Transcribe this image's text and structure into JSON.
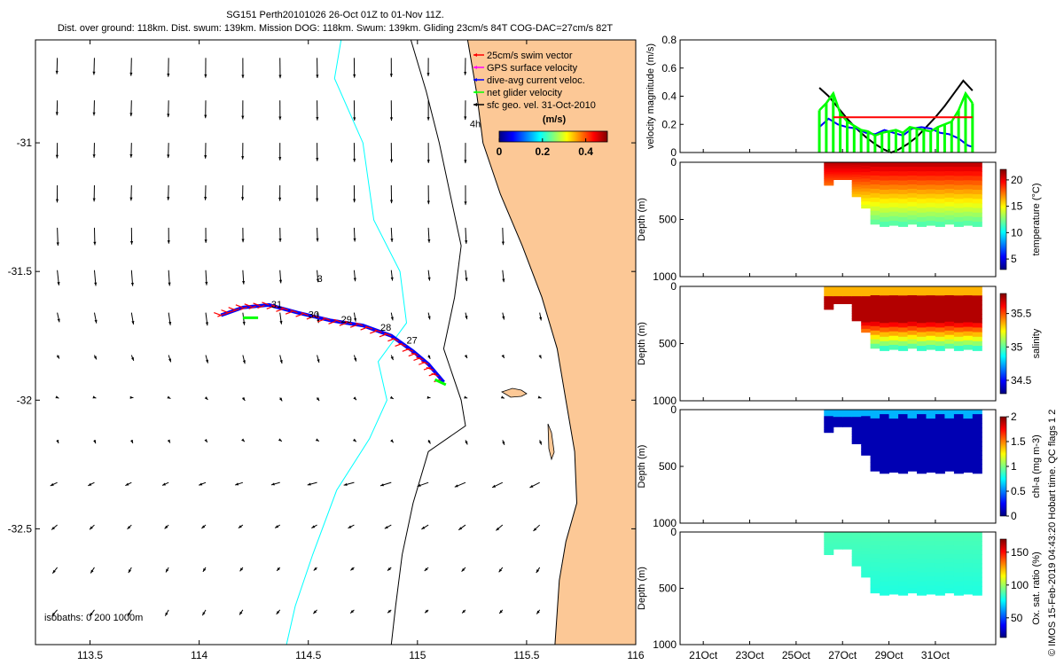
{
  "title_line1": "SG151 Perth20101026 26-Oct 01Z to 01-Nov 11Z.",
  "title_line2": "Dist. over ground: 118km. Dist. swum: 139km. Mission DOG: 118km. Swum: 139km. Gliding 23cm/s 84T COG-DAC=27cm/s 82T",
  "colors": {
    "land": "#fcc896",
    "coast": "#000000",
    "isobath_200": "#000000",
    "isobath_1000": "#00ffff",
    "swim_vector": "#ff0000",
    "gps_velocity": "#ff00ff",
    "dive_avg_current": "#0000ff",
    "net_glider_velocity": "#00ff00",
    "sfc_geo_vel": "#000000"
  },
  "map": {
    "xaxis": {
      "lim": [
        113.25,
        116.0
      ],
      "ticks": [
        113.5,
        114,
        114.5,
        115,
        115.5,
        116
      ],
      "tick_labels": [
        "113.5",
        "114",
        "114.5",
        "115",
        "115.5",
        "116"
      ]
    },
    "yaxis": {
      "lim": [
        -32.95,
        -30.6
      ],
      "ticks": [
        -31,
        -31.5,
        -32,
        -32.5
      ],
      "tick_labels": [
        "-31",
        "-31.5",
        "-32",
        "-32.5"
      ]
    },
    "legend": {
      "placement": "top-right",
      "entries": [
        {
          "label": "25cm/s swim vector",
          "color": "#ff0000"
        },
        {
          "label": "GPS surface velocity",
          "color": "#ff00ff"
        },
        {
          "label": "dive-avg current veloc.",
          "color": "#0000ff"
        },
        {
          "label": "net glider velocity",
          "color": "#00ff00"
        },
        {
          "label": "sfc geo. vel. 31-Oct-2010",
          "color": "#000000"
        }
      ]
    },
    "colorbar": {
      "label": "(m/s)",
      "ticks": [
        0,
        0.2,
        0.4
      ],
      "tick_labels": [
        "0",
        "0.2",
        "0.4"
      ],
      "lim": [
        0,
        0.5
      ],
      "colormap": "jet"
    },
    "isobath_note": "isobaths: 0   200  1000m",
    "day_labels": [
      {
        "text": "31",
        "lon": 114.33,
        "lat": -31.64
      },
      {
        "text": "30",
        "lon": 114.5,
        "lat": -31.68
      },
      {
        "text": "29",
        "lon": 114.65,
        "lat": -31.7
      },
      {
        "text": "28",
        "lon": 114.83,
        "lat": -31.73
      },
      {
        "text": "27",
        "lon": 114.95,
        "lat": -31.78
      },
      {
        "text": "3",
        "lon": 114.54,
        "lat": -31.54
      },
      {
        "text": "4h",
        "lon": 115.24,
        "lat": -30.94
      }
    ],
    "track": [
      {
        "lon": 114.1,
        "lat": -31.67
      },
      {
        "lon": 114.2,
        "lat": -31.64
      },
      {
        "lon": 114.32,
        "lat": -31.63
      },
      {
        "lon": 114.45,
        "lat": -31.66
      },
      {
        "lon": 114.6,
        "lat": -31.69
      },
      {
        "lon": 114.75,
        "lat": -31.71
      },
      {
        "lon": 114.88,
        "lat": -31.75
      },
      {
        "lon": 114.98,
        "lat": -31.81
      },
      {
        "lon": 115.05,
        "lat": -31.86
      },
      {
        "lon": 115.12,
        "lat": -31.93
      }
    ],
    "coastline": [
      {
        "lon": 115.23,
        "lat": -30.6
      },
      {
        "lon": 115.27,
        "lat": -30.8
      },
      {
        "lon": 115.3,
        "lat": -31.0
      },
      {
        "lon": 115.38,
        "lat": -31.2
      },
      {
        "lon": 115.48,
        "lat": -31.4
      },
      {
        "lon": 115.57,
        "lat": -31.6
      },
      {
        "lon": 115.64,
        "lat": -31.8
      },
      {
        "lon": 115.68,
        "lat": -32.0
      },
      {
        "lon": 115.72,
        "lat": -32.2
      },
      {
        "lon": 115.73,
        "lat": -32.4
      },
      {
        "lon": 115.68,
        "lat": -32.55
      },
      {
        "lon": 115.65,
        "lat": -32.7
      },
      {
        "lon": 115.63,
        "lat": -32.95
      }
    ],
    "isobath_200m": [
      {
        "lon": 114.97,
        "lat": -30.6
      },
      {
        "lon": 115.04,
        "lat": -30.8
      },
      {
        "lon": 115.1,
        "lat": -31.0
      },
      {
        "lon": 115.15,
        "lat": -31.2
      },
      {
        "lon": 115.2,
        "lat": -31.4
      },
      {
        "lon": 115.17,
        "lat": -31.6
      },
      {
        "lon": 115.12,
        "lat": -31.8
      },
      {
        "lon": 115.2,
        "lat": -32.0
      },
      {
        "lon": 115.22,
        "lat": -32.1
      },
      {
        "lon": 115.05,
        "lat": -32.2
      },
      {
        "lon": 114.98,
        "lat": -32.4
      },
      {
        "lon": 114.93,
        "lat": -32.6
      },
      {
        "lon": 114.9,
        "lat": -32.8
      },
      {
        "lon": 114.88,
        "lat": -32.95
      }
    ],
    "isobath_1000m": [
      {
        "lon": 114.65,
        "lat": -30.6
      },
      {
        "lon": 114.62,
        "lat": -30.75
      },
      {
        "lon": 114.75,
        "lat": -31.0
      },
      {
        "lon": 114.8,
        "lat": -31.3
      },
      {
        "lon": 114.92,
        "lat": -31.5
      },
      {
        "lon": 114.95,
        "lat": -31.7
      },
      {
        "lon": 114.82,
        "lat": -31.85
      },
      {
        "lon": 114.86,
        "lat": -32.0
      },
      {
        "lon": 114.78,
        "lat": -32.15
      },
      {
        "lon": 114.63,
        "lat": -32.35
      },
      {
        "lon": 114.52,
        "lat": -32.6
      },
      {
        "lon": 114.44,
        "lat": -32.8
      },
      {
        "lon": 114.4,
        "lat": -32.95
      }
    ]
  },
  "chart_data": [
    {
      "type": "line",
      "panel": "velocity",
      "ylabel": "velocity magnitude (m/s)",
      "ylim": [
        0,
        0.8
      ],
      "yticks": [
        0,
        0.2,
        0.4,
        0.6,
        0.8
      ],
      "xlim": [
        20,
        33.6
      ],
      "series": [
        {
          "color": "#000000",
          "x": [
            26.0,
            26.4,
            26.8,
            27.2,
            27.6,
            28.0,
            28.4,
            28.8,
            29.1,
            29.4,
            29.8,
            30.2,
            30.6,
            31.0,
            31.4,
            31.8,
            32.2,
            32.6
          ],
          "values": [
            0.46,
            0.4,
            0.32,
            0.24,
            0.17,
            0.11,
            0.06,
            0.02,
            0.0,
            0.02,
            0.06,
            0.11,
            0.18,
            0.25,
            0.33,
            0.42,
            0.51,
            0.44
          ]
        },
        {
          "color": "#0000ff",
          "x": [
            26.0,
            26.4,
            26.8,
            27.2,
            27.6,
            28.0,
            28.4,
            28.8,
            29.2,
            29.6,
            30.0,
            30.4,
            30.8,
            31.2,
            31.6,
            32.0,
            32.4,
            32.6
          ],
          "values": [
            0.18,
            0.24,
            0.2,
            0.18,
            0.17,
            0.14,
            0.13,
            0.16,
            0.14,
            0.12,
            0.17,
            0.18,
            0.17,
            0.14,
            0.13,
            0.1,
            0.05,
            0.04
          ]
        },
        {
          "color": "#00ff00",
          "x": [
            26.0,
            26.3,
            26.6,
            26.9,
            27.2,
            27.5,
            27.8,
            28.1,
            28.4,
            28.7,
            29.0,
            29.3,
            29.6,
            29.9,
            30.2,
            30.5,
            30.8,
            31.1,
            31.4,
            31.7,
            32.0,
            32.3,
            32.6
          ],
          "values": [
            0.3,
            0.35,
            0.42,
            0.28,
            0.22,
            0.19,
            0.16,
            0.15,
            0.12,
            0.14,
            0.15,
            0.16,
            0.14,
            0.18,
            0.17,
            0.16,
            0.15,
            0.18,
            0.2,
            0.22,
            0.3,
            0.42,
            0.35
          ]
        },
        {
          "color": "#ff0000",
          "x": [
            26.6,
            32.6
          ],
          "values": [
            0.25,
            0.25
          ]
        }
      ]
    },
    {
      "type": "heatmap",
      "panel": "temperature",
      "ylabel": "Depth (m)",
      "ylim": [
        1000,
        0
      ],
      "yticks": [
        0,
        500,
        1000
      ],
      "colorbar_label": "temperature (°C)",
      "colorbar_ticks": [
        5,
        10,
        15,
        20
      ],
      "colorbar_lim": [
        3,
        22
      ],
      "surface_value": 21,
      "deep_value": 12,
      "profiles": [
        {
          "day": 26.2,
          "max_depth": 200
        },
        {
          "day": 26.6,
          "max_depth": 150
        },
        {
          "day": 27.0,
          "max_depth": 150
        },
        {
          "day": 27.4,
          "max_depth": 300
        },
        {
          "day": 27.8,
          "max_depth": 400
        },
        {
          "day": 28.2,
          "max_depth": 540
        },
        {
          "day": 28.6,
          "max_depth": 560
        },
        {
          "day": 29.0,
          "max_depth": 550
        },
        {
          "day": 29.4,
          "max_depth": 560
        },
        {
          "day": 29.8,
          "max_depth": 540
        },
        {
          "day": 30.2,
          "max_depth": 560
        },
        {
          "day": 30.6,
          "max_depth": 550
        },
        {
          "day": 31.0,
          "max_depth": 560
        },
        {
          "day": 31.4,
          "max_depth": 540
        },
        {
          "day": 31.8,
          "max_depth": 560
        },
        {
          "day": 32.2,
          "max_depth": 550
        },
        {
          "day": 32.6,
          "max_depth": 560
        }
      ]
    },
    {
      "type": "heatmap",
      "panel": "salinity",
      "ylabel": "Depth (m)",
      "ylim": [
        1000,
        0
      ],
      "yticks": [
        0,
        500,
        1000
      ],
      "colorbar_label": "salinity",
      "colorbar_ticks": [
        34.5,
        35,
        35.5
      ],
      "colorbar_lim": [
        34.3,
        35.8
      ],
      "profiles": [
        {
          "day": 26.2,
          "max_depth": 200
        },
        {
          "day": 26.6,
          "max_depth": 150
        },
        {
          "day": 27.0,
          "max_depth": 150
        },
        {
          "day": 27.4,
          "max_depth": 300
        },
        {
          "day": 27.8,
          "max_depth": 400
        },
        {
          "day": 28.2,
          "max_depth": 540
        },
        {
          "day": 28.6,
          "max_depth": 560
        },
        {
          "day": 29.0,
          "max_depth": 550
        },
        {
          "day": 29.4,
          "max_depth": 560
        },
        {
          "day": 29.8,
          "max_depth": 540
        },
        {
          "day": 30.2,
          "max_depth": 560
        },
        {
          "day": 30.6,
          "max_depth": 550
        },
        {
          "day": 31.0,
          "max_depth": 560
        },
        {
          "day": 31.4,
          "max_depth": 540
        },
        {
          "day": 31.8,
          "max_depth": 560
        },
        {
          "day": 32.2,
          "max_depth": 550
        },
        {
          "day": 32.6,
          "max_depth": 560
        }
      ]
    },
    {
      "type": "heatmap",
      "panel": "chlorophyll",
      "ylabel": "Depth (m)",
      "ylim": [
        1000,
        0
      ],
      "yticks": [
        0,
        500,
        1000
      ],
      "colorbar_label": "chl-a (mg m-3)",
      "colorbar_ticks": [
        0,
        0.5,
        1,
        1.5,
        2
      ],
      "colorbar_lim": [
        0,
        2
      ],
      "profiles": [
        {
          "day": 26.2,
          "max_depth": 200
        },
        {
          "day": 26.6,
          "max_depth": 150
        },
        {
          "day": 27.0,
          "max_depth": 150
        },
        {
          "day": 27.4,
          "max_depth": 300
        },
        {
          "day": 27.8,
          "max_depth": 400
        },
        {
          "day": 28.2,
          "max_depth": 540
        },
        {
          "day": 28.6,
          "max_depth": 560
        },
        {
          "day": 29.0,
          "max_depth": 550
        },
        {
          "day": 29.4,
          "max_depth": 560
        },
        {
          "day": 29.8,
          "max_depth": 540
        },
        {
          "day": 30.2,
          "max_depth": 560
        },
        {
          "day": 30.6,
          "max_depth": 550
        },
        {
          "day": 31.0,
          "max_depth": 560
        },
        {
          "day": 31.4,
          "max_depth": 540
        },
        {
          "day": 31.8,
          "max_depth": 560
        },
        {
          "day": 32.2,
          "max_depth": 550
        },
        {
          "day": 32.6,
          "max_depth": 560
        }
      ]
    },
    {
      "type": "heatmap",
      "panel": "oxygen",
      "ylabel": "Depth (m)",
      "ylim": [
        1000,
        0
      ],
      "yticks": [
        0,
        500,
        1000
      ],
      "colorbar_label": "Ox. sat. ratio (%)",
      "colorbar_ticks": [
        50,
        100,
        150
      ],
      "colorbar_lim": [
        20,
        170
      ],
      "xticks": [
        21,
        23,
        25,
        27,
        29,
        31
      ],
      "xtick_labels": [
        "21Oct",
        "23Oct",
        "25Oct",
        "27Oct",
        "29Oct",
        "31Oct"
      ],
      "profiles": [
        {
          "day": 26.2,
          "max_depth": 200
        },
        {
          "day": 26.6,
          "max_depth": 150
        },
        {
          "day": 27.0,
          "max_depth": 150
        },
        {
          "day": 27.4,
          "max_depth": 300
        },
        {
          "day": 27.8,
          "max_depth": 400
        },
        {
          "day": 28.2,
          "max_depth": 540
        },
        {
          "day": 28.6,
          "max_depth": 560
        },
        {
          "day": 29.0,
          "max_depth": 550
        },
        {
          "day": 29.4,
          "max_depth": 560
        },
        {
          "day": 29.8,
          "max_depth": 540
        },
        {
          "day": 30.2,
          "max_depth": 560
        },
        {
          "day": 30.6,
          "max_depth": 550
        },
        {
          "day": 31.0,
          "max_depth": 560
        },
        {
          "day": 31.4,
          "max_depth": 540
        },
        {
          "day": 31.8,
          "max_depth": 560
        },
        {
          "day": 32.2,
          "max_depth": 550
        },
        {
          "day": 32.6,
          "max_depth": 560
        }
      ]
    }
  ],
  "side_note": "© IMOS 15-Feb-2019 04:43:20 Hobart time. QC flags 1  2"
}
